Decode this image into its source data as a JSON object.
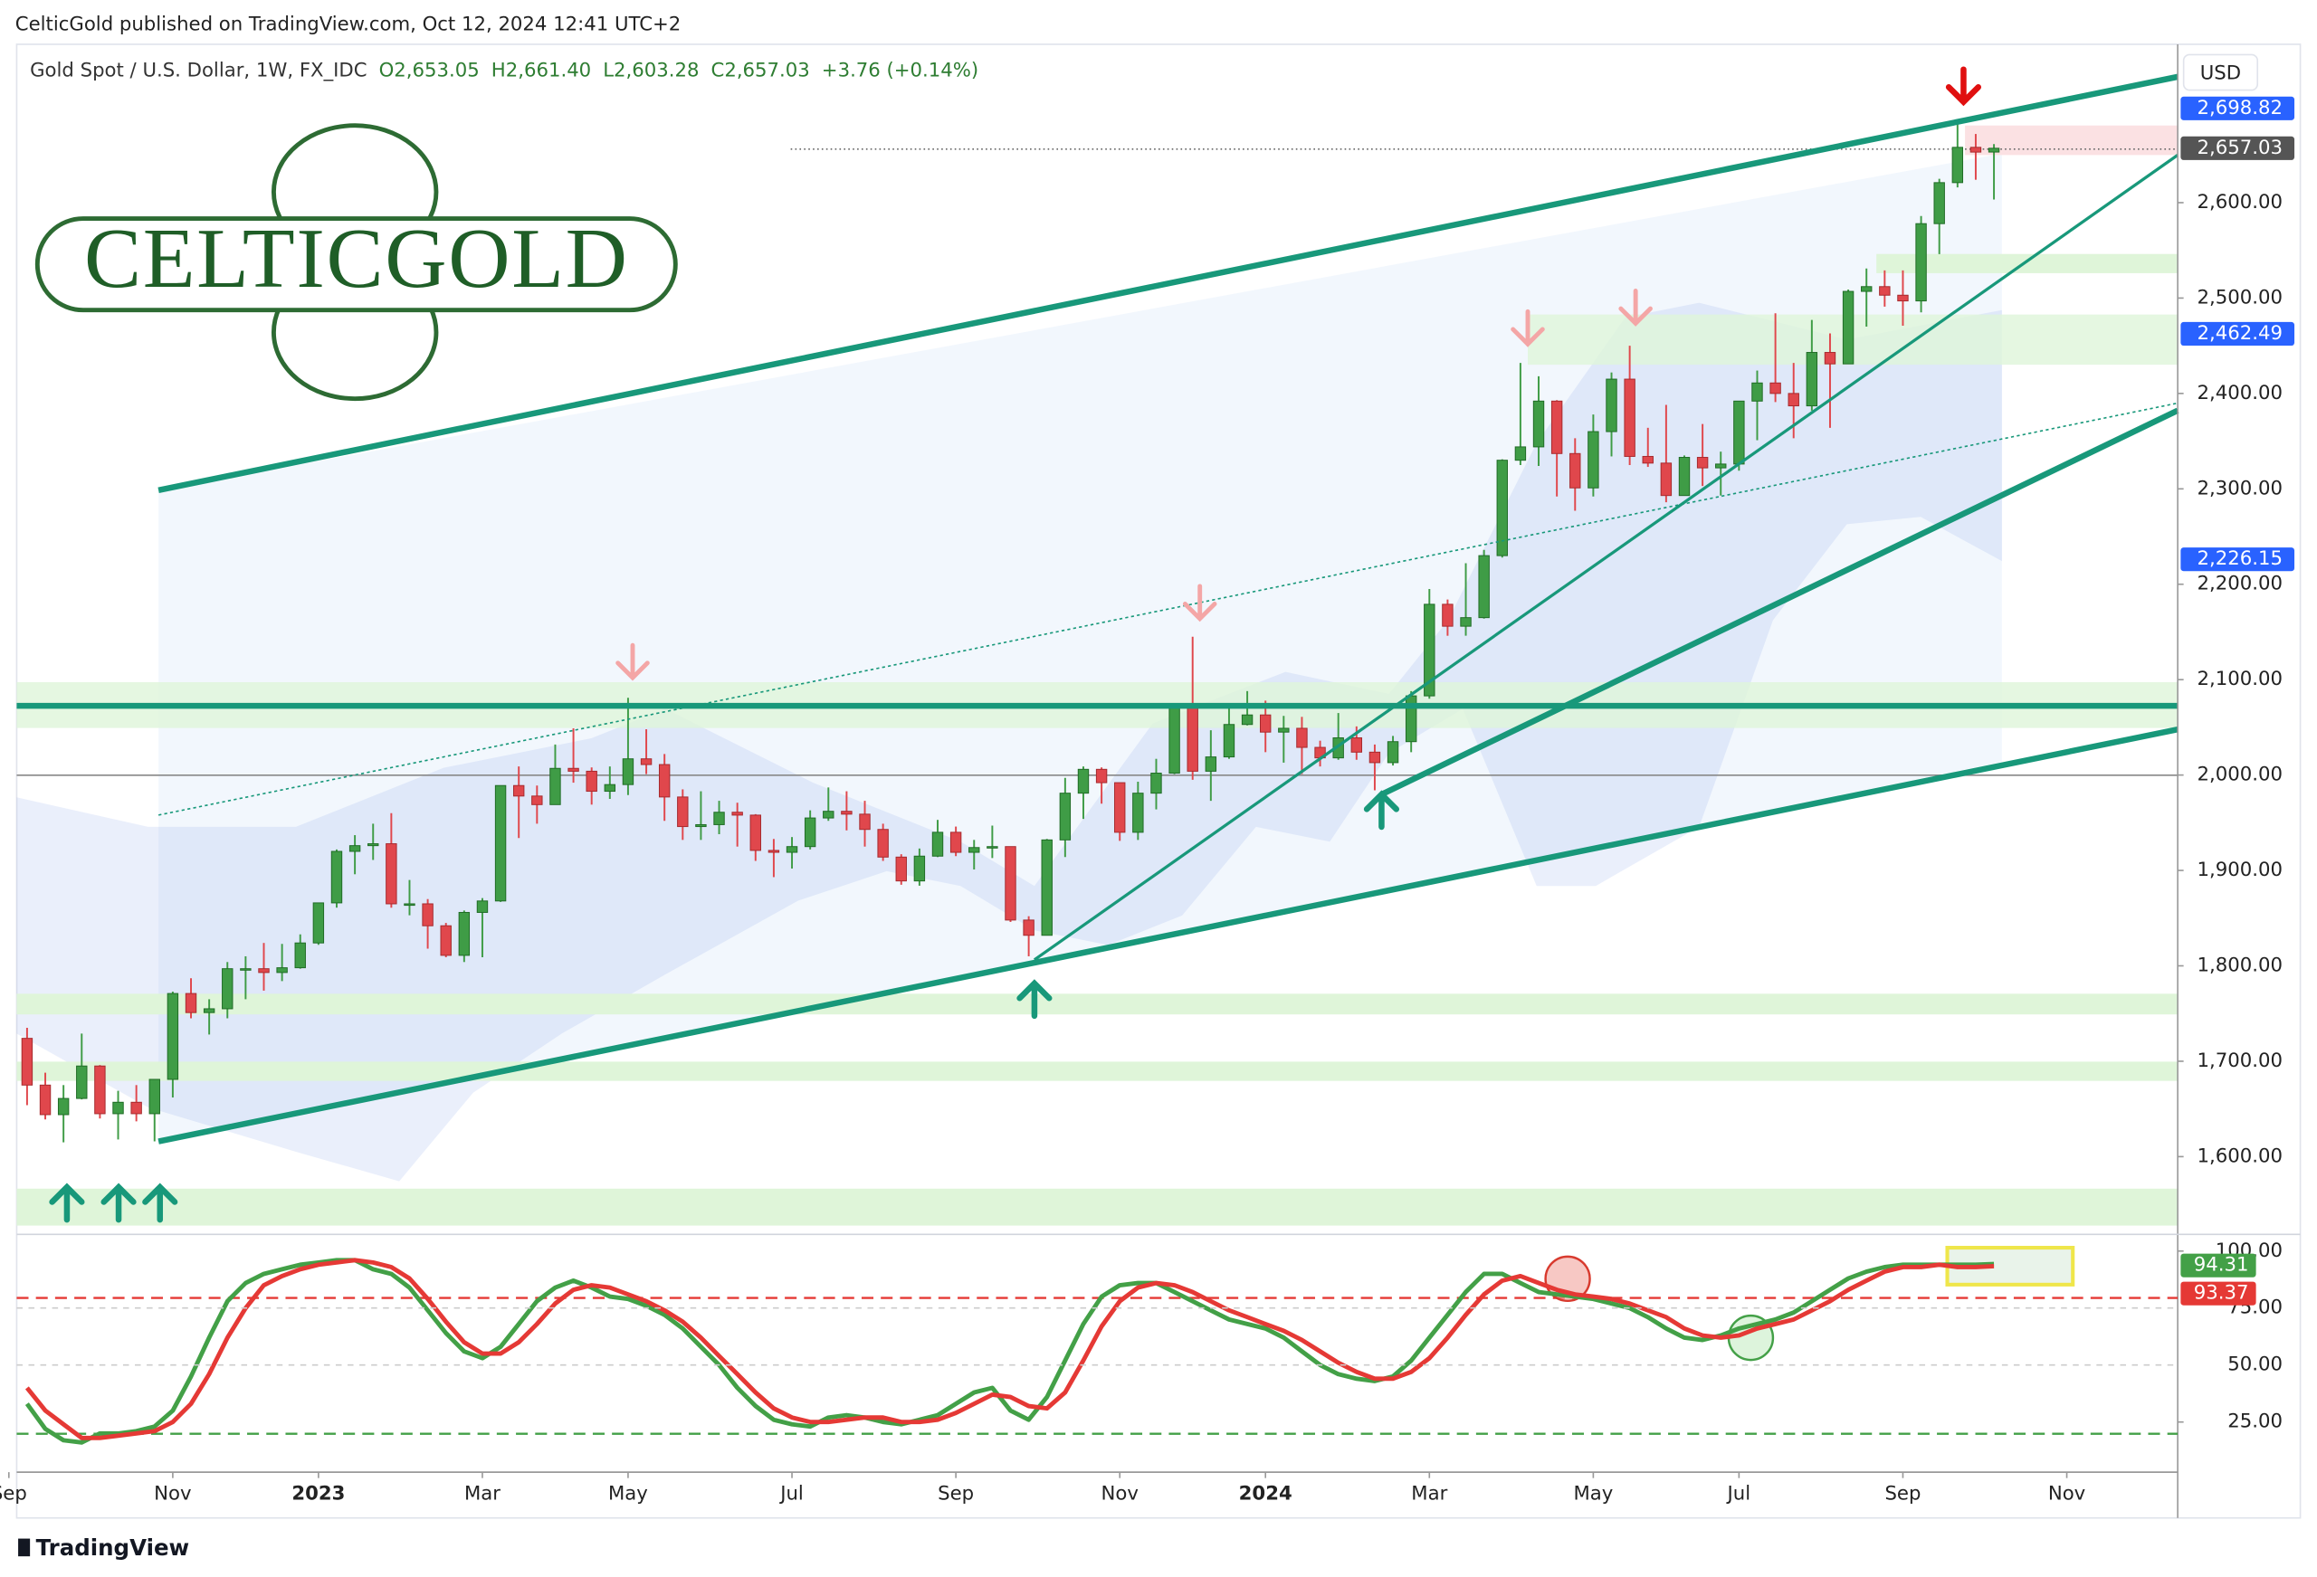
{
  "header": "CelticGold published on TradingView.com, Oct 12, 2024 12:41 UTC+2",
  "logo": "CELTICGOLD",
  "brand": "TradingView",
  "chart_data": [
    {
      "type": "candlestick",
      "symbol": "Gold Spot / U.S. Dollar, 1W, FX_IDC",
      "legend_values": [
        "O2,653.05",
        "H2,661.40",
        "L2,603.28",
        "C2,657.03",
        "+3.76 (+0.14%)"
      ],
      "y_unit": "USD",
      "up_color": "#3f9c46",
      "down_color": "#e0474c",
      "ylim": [
        1520,
        2766
      ],
      "yticks": [
        {
          "value": 1600,
          "label": "1,600.00"
        },
        {
          "value": 1700,
          "label": "1,700.00"
        },
        {
          "value": 1800,
          "label": "1,800.00"
        },
        {
          "value": 1900,
          "label": "1,900.00"
        },
        {
          "value": 2000,
          "label": "2,000.00"
        },
        {
          "value": 2100,
          "label": "2,100.00"
        },
        {
          "value": 2200,
          "label": "2,200.00"
        },
        {
          "value": 2300,
          "label": "2,300.00"
        },
        {
          "value": 2400,
          "label": "2,400.00"
        },
        {
          "value": 2500,
          "label": "2,500.00"
        },
        {
          "value": 2600,
          "label": "2,600.00"
        }
      ],
      "price_tags": [
        {
          "value": 2698.82,
          "label": "2,698.82",
          "color": "#2962ff"
        },
        {
          "value": 2657.03,
          "label": "2,657.03",
          "color": "#555555"
        },
        {
          "value": 2462.49,
          "label": "2,462.49",
          "color": "#2962ff"
        },
        {
          "value": 2226.15,
          "label": "2,226.15",
          "color": "#2962ff"
        }
      ],
      "candles": [
        [
          1724,
          1735,
          1654,
          1675
        ],
        [
          1675,
          1688,
          1639,
          1644
        ],
        [
          1644,
          1675,
          1615,
          1661
        ],
        [
          1661,
          1729,
          1660,
          1695
        ],
        [
          1695,
          1696,
          1640,
          1645
        ],
        [
          1645,
          1669,
          1618,
          1657
        ],
        [
          1657,
          1675,
          1637,
          1645
        ],
        [
          1645,
          1680,
          1616,
          1681
        ],
        [
          1681,
          1773,
          1662,
          1771
        ],
        [
          1771,
          1787,
          1745,
          1751
        ],
        [
          1751,
          1765,
          1728,
          1755
        ],
        [
          1755,
          1804,
          1745,
          1797
        ],
        [
          1797,
          1810,
          1765,
          1797
        ],
        [
          1797,
          1824,
          1774,
          1793
        ],
        [
          1793,
          1823,
          1784,
          1798
        ],
        [
          1798,
          1833,
          1797,
          1824
        ],
        [
          1824,
          1865,
          1822,
          1866
        ],
        [
          1866,
          1922,
          1861,
          1920
        ],
        [
          1920,
          1937,
          1896,
          1926
        ],
        [
          1926,
          1949,
          1911,
          1928
        ],
        [
          1928,
          1960,
          1861,
          1865
        ],
        [
          1865,
          1890,
          1853,
          1865
        ],
        [
          1865,
          1870,
          1818,
          1842
        ],
        [
          1842,
          1845,
          1809,
          1811
        ],
        [
          1811,
          1858,
          1804,
          1856
        ],
        [
          1856,
          1871,
          1809,
          1868
        ],
        [
          1868,
          1989,
          1867,
          1989
        ],
        [
          1989,
          2009,
          1934,
          1978
        ],
        [
          1978,
          1989,
          1949,
          1969
        ],
        [
          1969,
          2032,
          1969,
          2007
        ],
        [
          2007,
          2049,
          1992,
          2004
        ],
        [
          2004,
          2008,
          1969,
          1983
        ],
        [
          1983,
          2009,
          1975,
          1990
        ],
        [
          1990,
          2081,
          1979,
          2017
        ],
        [
          2017,
          2048,
          2001,
          2011
        ],
        [
          2011,
          2022,
          1952,
          1977
        ],
        [
          1977,
          1985,
          1932,
          1946
        ],
        [
          1946,
          1983,
          1932,
          1948
        ],
        [
          1948,
          1973,
          1938,
          1961
        ],
        [
          1961,
          1971,
          1925,
          1958
        ],
        [
          1958,
          1959,
          1910,
          1921
        ],
        [
          1921,
          1933,
          1893,
          1919
        ],
        [
          1919,
          1935,
          1902,
          1925
        ],
        [
          1925,
          1963,
          1922,
          1955
        ],
        [
          1955,
          1987,
          1952,
          1962
        ],
        [
          1962,
          1983,
          1942,
          1959
        ],
        [
          1959,
          1973,
          1925,
          1943
        ],
        [
          1943,
          1949,
          1910,
          1914
        ],
        [
          1914,
          1917,
          1885,
          1889
        ],
        [
          1889,
          1923,
          1884,
          1915
        ],
        [
          1915,
          1953,
          1914,
          1940
        ],
        [
          1940,
          1946,
          1915,
          1919
        ],
        [
          1919,
          1932,
          1901,
          1924
        ],
        [
          1924,
          1947,
          1913,
          1925
        ],
        [
          1925,
          1925,
          1846,
          1848
        ],
        [
          1848,
          1852,
          1810,
          1832
        ],
        [
          1832,
          1933,
          1832,
          1932
        ],
        [
          1932,
          1997,
          1914,
          1981
        ],
        [
          1981,
          2009,
          1954,
          2006
        ],
        [
          2006,
          2008,
          1970,
          1992
        ],
        [
          1992,
          1992,
          1931,
          1940
        ],
        [
          1940,
          1993,
          1932,
          1981
        ],
        [
          1981,
          2017,
          1964,
          2002
        ],
        [
          2002,
          2075,
          2001,
          2072
        ],
        [
          2072,
          2145,
          1995,
          2004
        ],
        [
          2004,
          2047,
          1973,
          2019
        ],
        [
          2019,
          2071,
          2017,
          2053
        ],
        [
          2053,
          2088,
          2052,
          2063
        ],
        [
          2063,
          2078,
          2024,
          2045
        ],
        [
          2045,
          2062,
          2013,
          2049
        ],
        [
          2049,
          2061,
          2001,
          2029
        ],
        [
          2029,
          2036,
          2009,
          2018
        ],
        [
          2018,
          2065,
          2016,
          2039
        ],
        [
          2039,
          2051,
          2016,
          2024
        ],
        [
          2024,
          2032,
          1984,
          2013
        ],
        [
          2013,
          2041,
          2010,
          2035
        ],
        [
          2035,
          2088,
          2024,
          2083
        ],
        [
          2083,
          2195,
          2080,
          2179
        ],
        [
          2179,
          2184,
          2146,
          2156
        ],
        [
          2156,
          2222,
          2146,
          2165
        ],
        [
          2165,
          2236,
          2164,
          2230
        ],
        [
          2230,
          2331,
          2228,
          2330
        ],
        [
          2330,
          2432,
          2325,
          2344
        ],
        [
          2344,
          2418,
          2324,
          2392
        ],
        [
          2392,
          2393,
          2292,
          2337
        ],
        [
          2337,
          2353,
          2277,
          2301
        ],
        [
          2301,
          2378,
          2292,
          2360
        ],
        [
          2360,
          2422,
          2334,
          2415
        ],
        [
          2415,
          2450,
          2325,
          2334
        ],
        [
          2334,
          2364,
          2323,
          2327
        ],
        [
          2327,
          2388,
          2286,
          2293
        ],
        [
          2293,
          2335,
          2294,
          2333
        ],
        [
          2333,
          2368,
          2303,
          2322
        ],
        [
          2322,
          2339,
          2293,
          2326
        ],
        [
          2326,
          2392,
          2319,
          2392
        ],
        [
          2392,
          2424,
          2351,
          2411
        ],
        [
          2411,
          2484,
          2391,
          2400
        ],
        [
          2400,
          2432,
          2353,
          2387
        ],
        [
          2387,
          2477,
          2382,
          2443
        ],
        [
          2443,
          2463,
          2364,
          2431
        ],
        [
          2431,
          2509,
          2431,
          2507
        ],
        [
          2507,
          2531,
          2470,
          2512
        ],
        [
          2512,
          2529,
          2491,
          2503
        ],
        [
          2503,
          2529,
          2471,
          2497
        ],
        [
          2497,
          2586,
          2485,
          2578
        ],
        [
          2578,
          2625,
          2546,
          2621
        ],
        [
          2621,
          2685,
          2616,
          2658
        ],
        [
          2658,
          2672,
          2624,
          2653
        ],
        [
          2653.05,
          2661.4,
          2603.28,
          2657.03
        ]
      ]
    },
    {
      "type": "line",
      "xlim": [
        -0.57,
        118.09
      ],
      "xticks": [
        {
          "value": -1,
          "label": "Sep"
        },
        {
          "value": 8,
          "label": "Nov"
        },
        {
          "value": 16,
          "label": "2023"
        },
        {
          "value": 25,
          "label": "Mar"
        },
        {
          "value": 33,
          "label": "May"
        },
        {
          "value": 42,
          "label": "Jul"
        },
        {
          "value": 51,
          "label": "Sep"
        },
        {
          "value": 60,
          "label": "Nov"
        },
        {
          "value": 68,
          "label": "2024"
        },
        {
          "value": 77,
          "label": "Mar"
        },
        {
          "value": 86,
          "label": "May"
        },
        {
          "value": 94,
          "label": "Jul"
        },
        {
          "value": 103,
          "label": "Sep"
        },
        {
          "value": 112,
          "label": "Nov"
        }
      ],
      "ylim": [
        3,
        106
      ],
      "yticks": [
        {
          "value": 25,
          "label": "25.00"
        },
        {
          "value": 50,
          "label": "50.00"
        },
        {
          "value": 75,
          "label": "75.00"
        },
        {
          "value": 100,
          "label": "100.00"
        }
      ],
      "series": [
        {
          "color": "#43a047",
          "values": [
            33,
            22,
            17,
            16,
            20,
            20,
            21,
            23,
            30,
            45,
            62,
            78,
            86,
            90,
            92,
            94,
            95,
            96,
            96,
            92,
            90,
            84,
            74,
            64,
            56,
            53,
            58,
            68,
            78,
            84,
            87,
            84,
            80,
            79,
            76,
            72,
            66,
            58,
            50,
            40,
            32,
            26,
            24,
            23,
            27,
            28,
            27,
            25,
            24,
            26,
            28,
            33,
            38,
            40,
            30,
            26,
            36,
            52,
            68,
            80,
            85,
            86,
            86,
            82,
            78,
            74,
            70,
            68,
            66,
            62,
            56,
            50,
            46,
            44,
            43,
            45,
            52,
            62,
            72,
            82,
            90,
            90,
            86,
            82,
            81,
            80,
            79,
            77,
            75,
            71,
            66,
            62,
            61,
            63,
            66,
            68,
            70,
            73,
            78,
            83,
            88,
            91,
            93,
            94,
            94,
            94,
            94,
            94,
            94.31
          ]
        },
        {
          "color": "#e53935",
          "values": [
            40,
            30,
            24,
            18,
            18,
            19,
            20,
            21,
            25,
            33,
            46,
            62,
            75,
            85,
            89,
            92,
            94,
            95,
            96,
            95,
            93,
            88,
            79,
            69,
            60,
            55,
            55,
            60,
            68,
            77,
            83,
            85,
            84,
            81,
            78,
            74,
            69,
            62,
            54,
            46,
            38,
            31,
            27,
            25,
            25,
            26,
            27,
            27,
            25,
            25,
            26,
            29,
            33,
            37,
            36,
            32,
            31,
            38,
            52,
            67,
            78,
            84,
            86,
            85,
            82,
            78,
            74,
            71,
            68,
            65,
            61,
            56,
            51,
            47,
            44,
            44,
            47,
            53,
            62,
            72,
            81,
            87,
            89,
            86,
            83,
            81,
            80,
            79,
            77,
            74,
            71,
            66,
            63,
            62,
            63,
            66,
            68,
            70,
            74,
            78,
            83,
            87,
            91,
            93,
            93,
            94,
            93,
            93,
            93.37
          ]
        }
      ]
    }
  ]
}
